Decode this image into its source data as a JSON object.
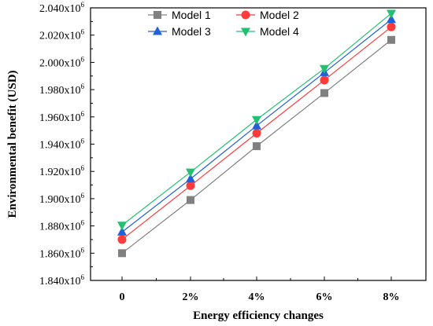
{
  "chart_data": {
    "type": "line",
    "title": "",
    "xlabel": "Energy efficiency changes",
    "ylabel": "Environmental benefit (USD)",
    "categories": [
      "0",
      "2%",
      "4%",
      "6%",
      "8%"
    ],
    "ylim": [
      1840000,
      2040000
    ],
    "yticks": [
      1840000,
      1860000,
      1880000,
      1900000,
      1920000,
      1940000,
      1960000,
      1980000,
      2000000,
      2020000,
      2040000
    ],
    "ytick_labels": [
      "1.840x10",
      "1.860x10",
      "1.880x10",
      "1.900x10",
      "1.920x10",
      "1.940x10",
      "1.960x10",
      "1.980x10",
      "2.000x10",
      "2.020x10",
      "2.040x10"
    ],
    "ytick_exponent": "6",
    "grid": false,
    "legend_position": "top",
    "series": [
      {
        "name": "Model 1",
        "color": "#808080",
        "marker": "square",
        "values": [
          1860000,
          1899000,
          1938500,
          1977500,
          2016500
        ]
      },
      {
        "name": "Model 2",
        "color": "#ff3b3b",
        "marker": "circle",
        "values": [
          1870000,
          1909500,
          1948000,
          1987000,
          2026000
        ]
      },
      {
        "name": "Model 3",
        "color": "#2060d8",
        "marker": "triangle-up",
        "values": [
          1875500,
          1914500,
          1953500,
          1992500,
          2031500
        ]
      },
      {
        "name": "Model 4",
        "color": "#22c070",
        "marker": "triangle-down",
        "values": [
          1880500,
          1919500,
          1958000,
          1995500,
          2036000
        ]
      }
    ]
  }
}
